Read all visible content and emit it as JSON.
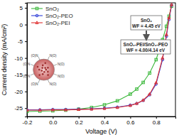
{
  "chart_data": {
    "type": "line",
    "x_label": "Voltage (V)",
    "y_label": "Current density (mA/cm²)",
    "x": [
      -0.2,
      -0.1,
      0,
      0.1,
      0.2,
      0.3,
      0.4,
      0.5,
      0.6,
      0.65,
      0.7,
      0.75,
      0.8,
      0.85,
      0.88,
      0.9,
      0.92
    ],
    "series": [
      {
        "name": "SnO₂",
        "color": "#3cb83c",
        "marker": "square",
        "values": [
          -26.0,
          -25.9,
          -25.8,
          -25.6,
          -25.3,
          -24.8,
          -24.0,
          -22.8,
          -20.8,
          -19.3,
          -17.3,
          -14.5,
          -10.5,
          -4.5,
          -0.5,
          2.5,
          5.5
        ]
      },
      {
        "name": "SnO₂-PEO",
        "color": "#2f3fd8",
        "marker": "circle",
        "values": [
          -25.5,
          -25.5,
          -25.4,
          -25.4,
          -25.3,
          -25.2,
          -25.0,
          -24.7,
          -24.1,
          -23.6,
          -22.7,
          -21.0,
          -17.8,
          -10.5,
          -3.5,
          1.5,
          5.8
        ]
      },
      {
        "name": "SnO₂-PEI",
        "color": "#e03030",
        "marker": "triangle",
        "values": [
          -25.6,
          -25.6,
          -25.5,
          -25.5,
          -25.4,
          -25.3,
          -25.1,
          -24.8,
          -24.2,
          -23.6,
          -22.6,
          -20.8,
          -17.4,
          -10.0,
          -3.0,
          2.0,
          6.0
        ]
      }
    ],
    "xlim": [
      -0.2,
      0.95
    ],
    "xticks": [
      {
        "value": -0.2,
        "label": "-0.2"
      },
      {
        "value": 0,
        "label": "0.0"
      },
      {
        "value": 0.2,
        "label": "0.2"
      },
      {
        "value": 0.4,
        "label": "0.4"
      },
      {
        "value": 0.6,
        "label": "0.6"
      },
      {
        "value": 0.8,
        "label": "0.8"
      }
    ],
    "ylim": [
      -27.5,
      6.5
    ],
    "yticks": [
      -25,
      -20,
      -15,
      -10,
      -5,
      0,
      5
    ],
    "legend": "top-left",
    "grid": false,
    "annotations": [
      {
        "lines": [
          "SnO₂",
          "WF = 4.45 eV"
        ]
      },
      {
        "lines": [
          "SnO₂-PEI/SnO₂-PEO",
          "WF = 4.00/4.14 eV"
        ]
      }
    ],
    "inset_labels": [
      "N(O)",
      "N(O)",
      "N(O)",
      "N(O)",
      "(O)N",
      "(O)N",
      "(O)N",
      "(O)N"
    ]
  }
}
